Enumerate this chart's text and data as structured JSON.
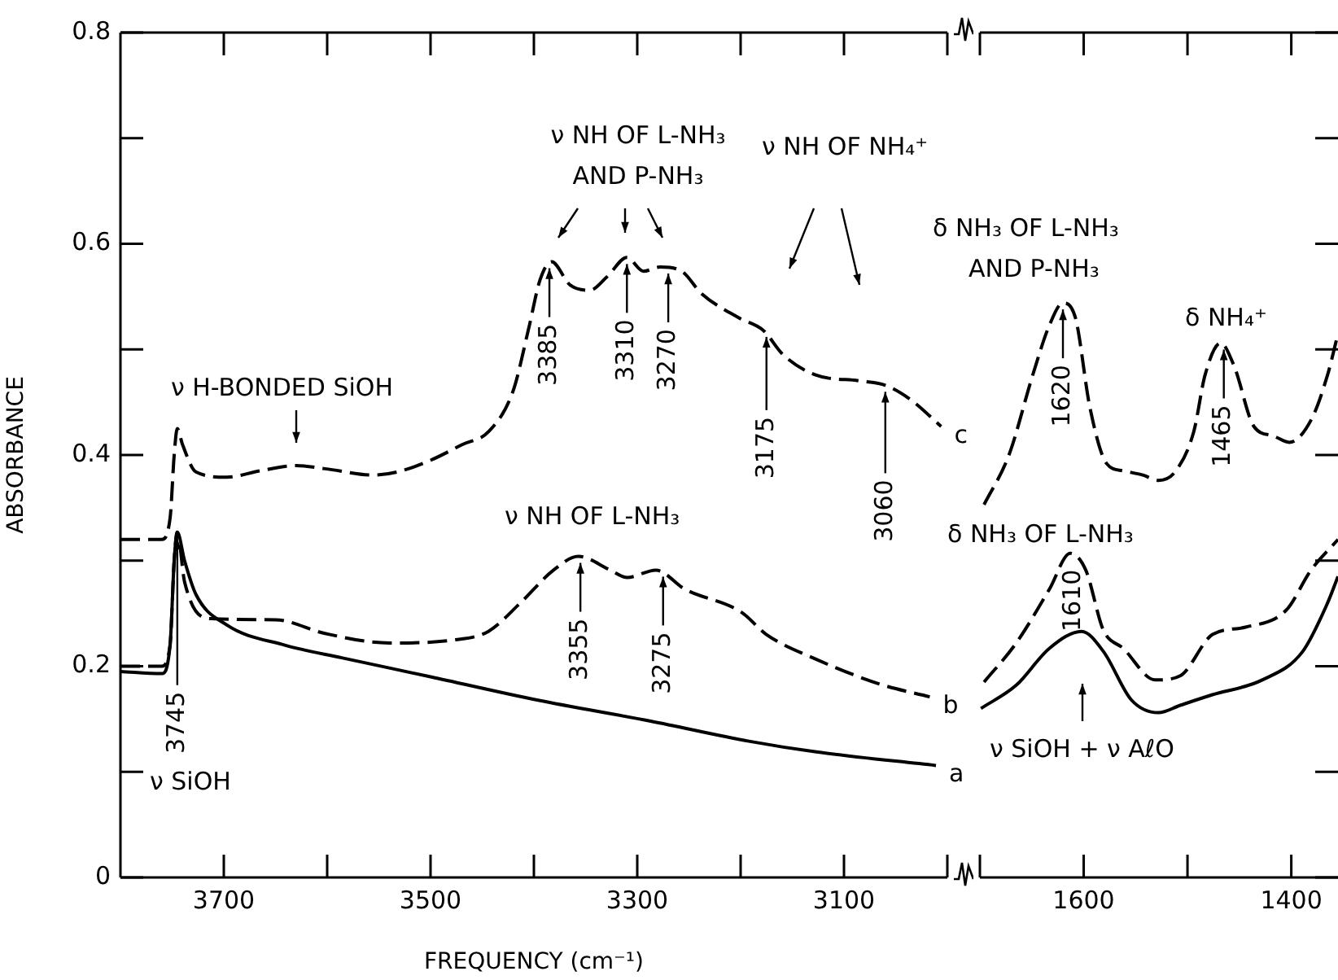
{
  "chart_data": [
    {
      "type": "line",
      "xlabel": "FREQUENCY (cm⁻¹)",
      "ylabel": "ABSORBANCE",
      "xlim": [
        3800,
        3000
      ],
      "ylim": [
        0,
        0.8
      ],
      "xticks": [
        3700,
        {
          "value": 3600,
          "label": null
        },
        3500,
        {
          "value": 3400,
          "label": null
        },
        3300,
        {
          "value": 3200,
          "label": null
        },
        3100,
        {
          "value": 3000,
          "label": null
        }
      ],
      "yticks": [
        0,
        {
          "value": 0.1,
          "label": null
        },
        0.2,
        {
          "value": 0.3,
          "label": null
        },
        0.4,
        {
          "value": 0.5,
          "label": null
        },
        0.6,
        {
          "value": 0.7,
          "label": null
        },
        0.8
      ],
      "marker": "none",
      "series": [
        {
          "name": "c",
          "color": "#000000",
          "line_style": "dashed",
          "x": [
            3800,
            3760,
            3752,
            3748,
            3745,
            3740,
            3727,
            3697,
            3665,
            3630,
            3602,
            3555,
            3532,
            3500,
            3469,
            3444,
            3420,
            3405,
            3394,
            3383,
            3365,
            3346,
            3329,
            3310,
            3294,
            3278,
            3257,
            3238,
            3202,
            3178,
            3159,
            3128,
            3083,
            3060,
            3035,
            3006
          ],
          "values": [
            0.32,
            0.32,
            0.34,
            0.4,
            0.425,
            0.41,
            0.384,
            0.379,
            0.385,
            0.39,
            0.387,
            0.381,
            0.384,
            0.395,
            0.41,
            0.422,
            0.461,
            0.52,
            0.566,
            0.583,
            0.561,
            0.556,
            0.569,
            0.587,
            0.574,
            0.578,
            0.574,
            0.553,
            0.53,
            0.518,
            0.495,
            0.476,
            0.47,
            0.466,
            0.452,
            0.427
          ]
        },
        {
          "name": "b",
          "color": "#000000",
          "line_style": "dashed",
          "x": [
            3800,
            3760,
            3752,
            3748,
            3745,
            3738,
            3712,
            3650,
            3602,
            3540,
            3476,
            3444,
            3413,
            3381,
            3357,
            3326,
            3310,
            3282,
            3254,
            3199,
            3175,
            3128,
            3065,
            3017
          ],
          "values": [
            0.2,
            0.2,
            0.22,
            0.3,
            0.327,
            0.28,
            0.245,
            0.244,
            0.231,
            0.222,
            0.225,
            0.233,
            0.26,
            0.291,
            0.304,
            0.291,
            0.284,
            0.291,
            0.273,
            0.251,
            0.23,
            0.207,
            0.183,
            0.171
          ]
        },
        {
          "name": "a",
          "color": "#000000",
          "line_style": "solid",
          "x": [
            3800,
            3760,
            3752,
            3748,
            3745,
            3738,
            3727,
            3697,
            3641,
            3586,
            3500,
            3397,
            3287,
            3192,
            3128,
            3011
          ],
          "values": [
            0.195,
            0.193,
            0.22,
            0.3,
            0.327,
            0.3,
            0.268,
            0.239,
            0.22,
            0.208,
            0.19,
            0.168,
            0.148,
            0.129,
            0.119,
            0.106
          ]
        }
      ],
      "annotations": [
        "ν H-BONDED SiOH",
        "ν NH OF L-NH₃ AND P-NH₃",
        "ν NH OF NH₄⁺",
        "ν NH OF L-NH₃",
        "ν SiOH",
        {
          "text": "3385",
          "x": 3385,
          "y": 0.583
        },
        {
          "text": "3310",
          "x": 3310,
          "y": 0.587
        },
        {
          "text": "3270",
          "x": 3270,
          "y": 0.578
        },
        {
          "text": "3175",
          "x": 3175,
          "y": 0.518
        },
        {
          "text": "3060",
          "x": 3060,
          "y": 0.466
        },
        {
          "text": "3745",
          "x": 3745,
          "y": 0.327
        },
        {
          "text": "3355",
          "x": 3355,
          "y": 0.304
        },
        {
          "text": "3275",
          "x": 3275,
          "y": 0.291
        }
      ]
    },
    {
      "type": "line",
      "xlim": [
        1700,
        1355
      ],
      "ylim": [
        0,
        0.8
      ],
      "tick_labels": "x",
      "xticks": [
        {
          "value": 1700,
          "label": null
        },
        1600,
        {
          "value": 1500,
          "label": null
        },
        1400
      ],
      "yticks": [
        0,
        {
          "value": 0.1,
          "label": null
        },
        0.2,
        {
          "value": 0.3,
          "label": null
        },
        0.4,
        {
          "value": 0.5,
          "label": null
        },
        0.6,
        {
          "value": 0.7,
          "label": null
        },
        0.8
      ],
      "marker": "none",
      "series": [
        {
          "color": "#000000",
          "line_style": "dashed",
          "x": [
            1696,
            1672,
            1649,
            1633,
            1620,
            1608,
            1594,
            1578,
            1562,
            1543,
            1528,
            1512,
            1494,
            1483,
            1468,
            1455,
            1436,
            1417,
            1402,
            1381,
            1365,
            1355
          ],
          "values": [
            0.353,
            0.4,
            0.476,
            0.523,
            0.544,
            0.53,
            0.445,
            0.392,
            0.385,
            0.381,
            0.376,
            0.384,
            0.422,
            0.476,
            0.506,
            0.484,
            0.427,
            0.418,
            0.412,
            0.433,
            0.476,
            0.515
          ]
        },
        {
          "color": "#000000",
          "line_style": "dashed",
          "x": [
            1696,
            1665,
            1633,
            1613,
            1598,
            1581,
            1562,
            1531,
            1507,
            1476,
            1444,
            1405,
            1381,
            1355
          ],
          "values": [
            0.185,
            0.222,
            0.273,
            0.307,
            0.291,
            0.234,
            0.217,
            0.187,
            0.191,
            0.23,
            0.237,
            0.253,
            0.291,
            0.32
          ]
        },
        {
          "color": "#000000",
          "line_style": "solid",
          "x": [
            1699,
            1665,
            1633,
            1602,
            1581,
            1554,
            1528,
            1507,
            1476,
            1428,
            1389,
            1365,
            1355
          ],
          "values": [
            0.16,
            0.182,
            0.217,
            0.233,
            0.214,
            0.168,
            0.156,
            0.163,
            0.173,
            0.187,
            0.214,
            0.26,
            0.285
          ]
        }
      ],
      "annotations": [
        "δ NH₃ OF L-NH₃ AND P-NH₃",
        "δ NH₄⁺",
        "δ NH₃ OF L-NH₃",
        "ν SiOH + ν AℓO",
        {
          "text": "1620",
          "x": 1620,
          "y": 0.544
        },
        {
          "text": "1465",
          "x": 1465,
          "y": 0.506
        },
        {
          "text": "1610",
          "x": 1610,
          "y": 0.307
        }
      ]
    }
  ]
}
